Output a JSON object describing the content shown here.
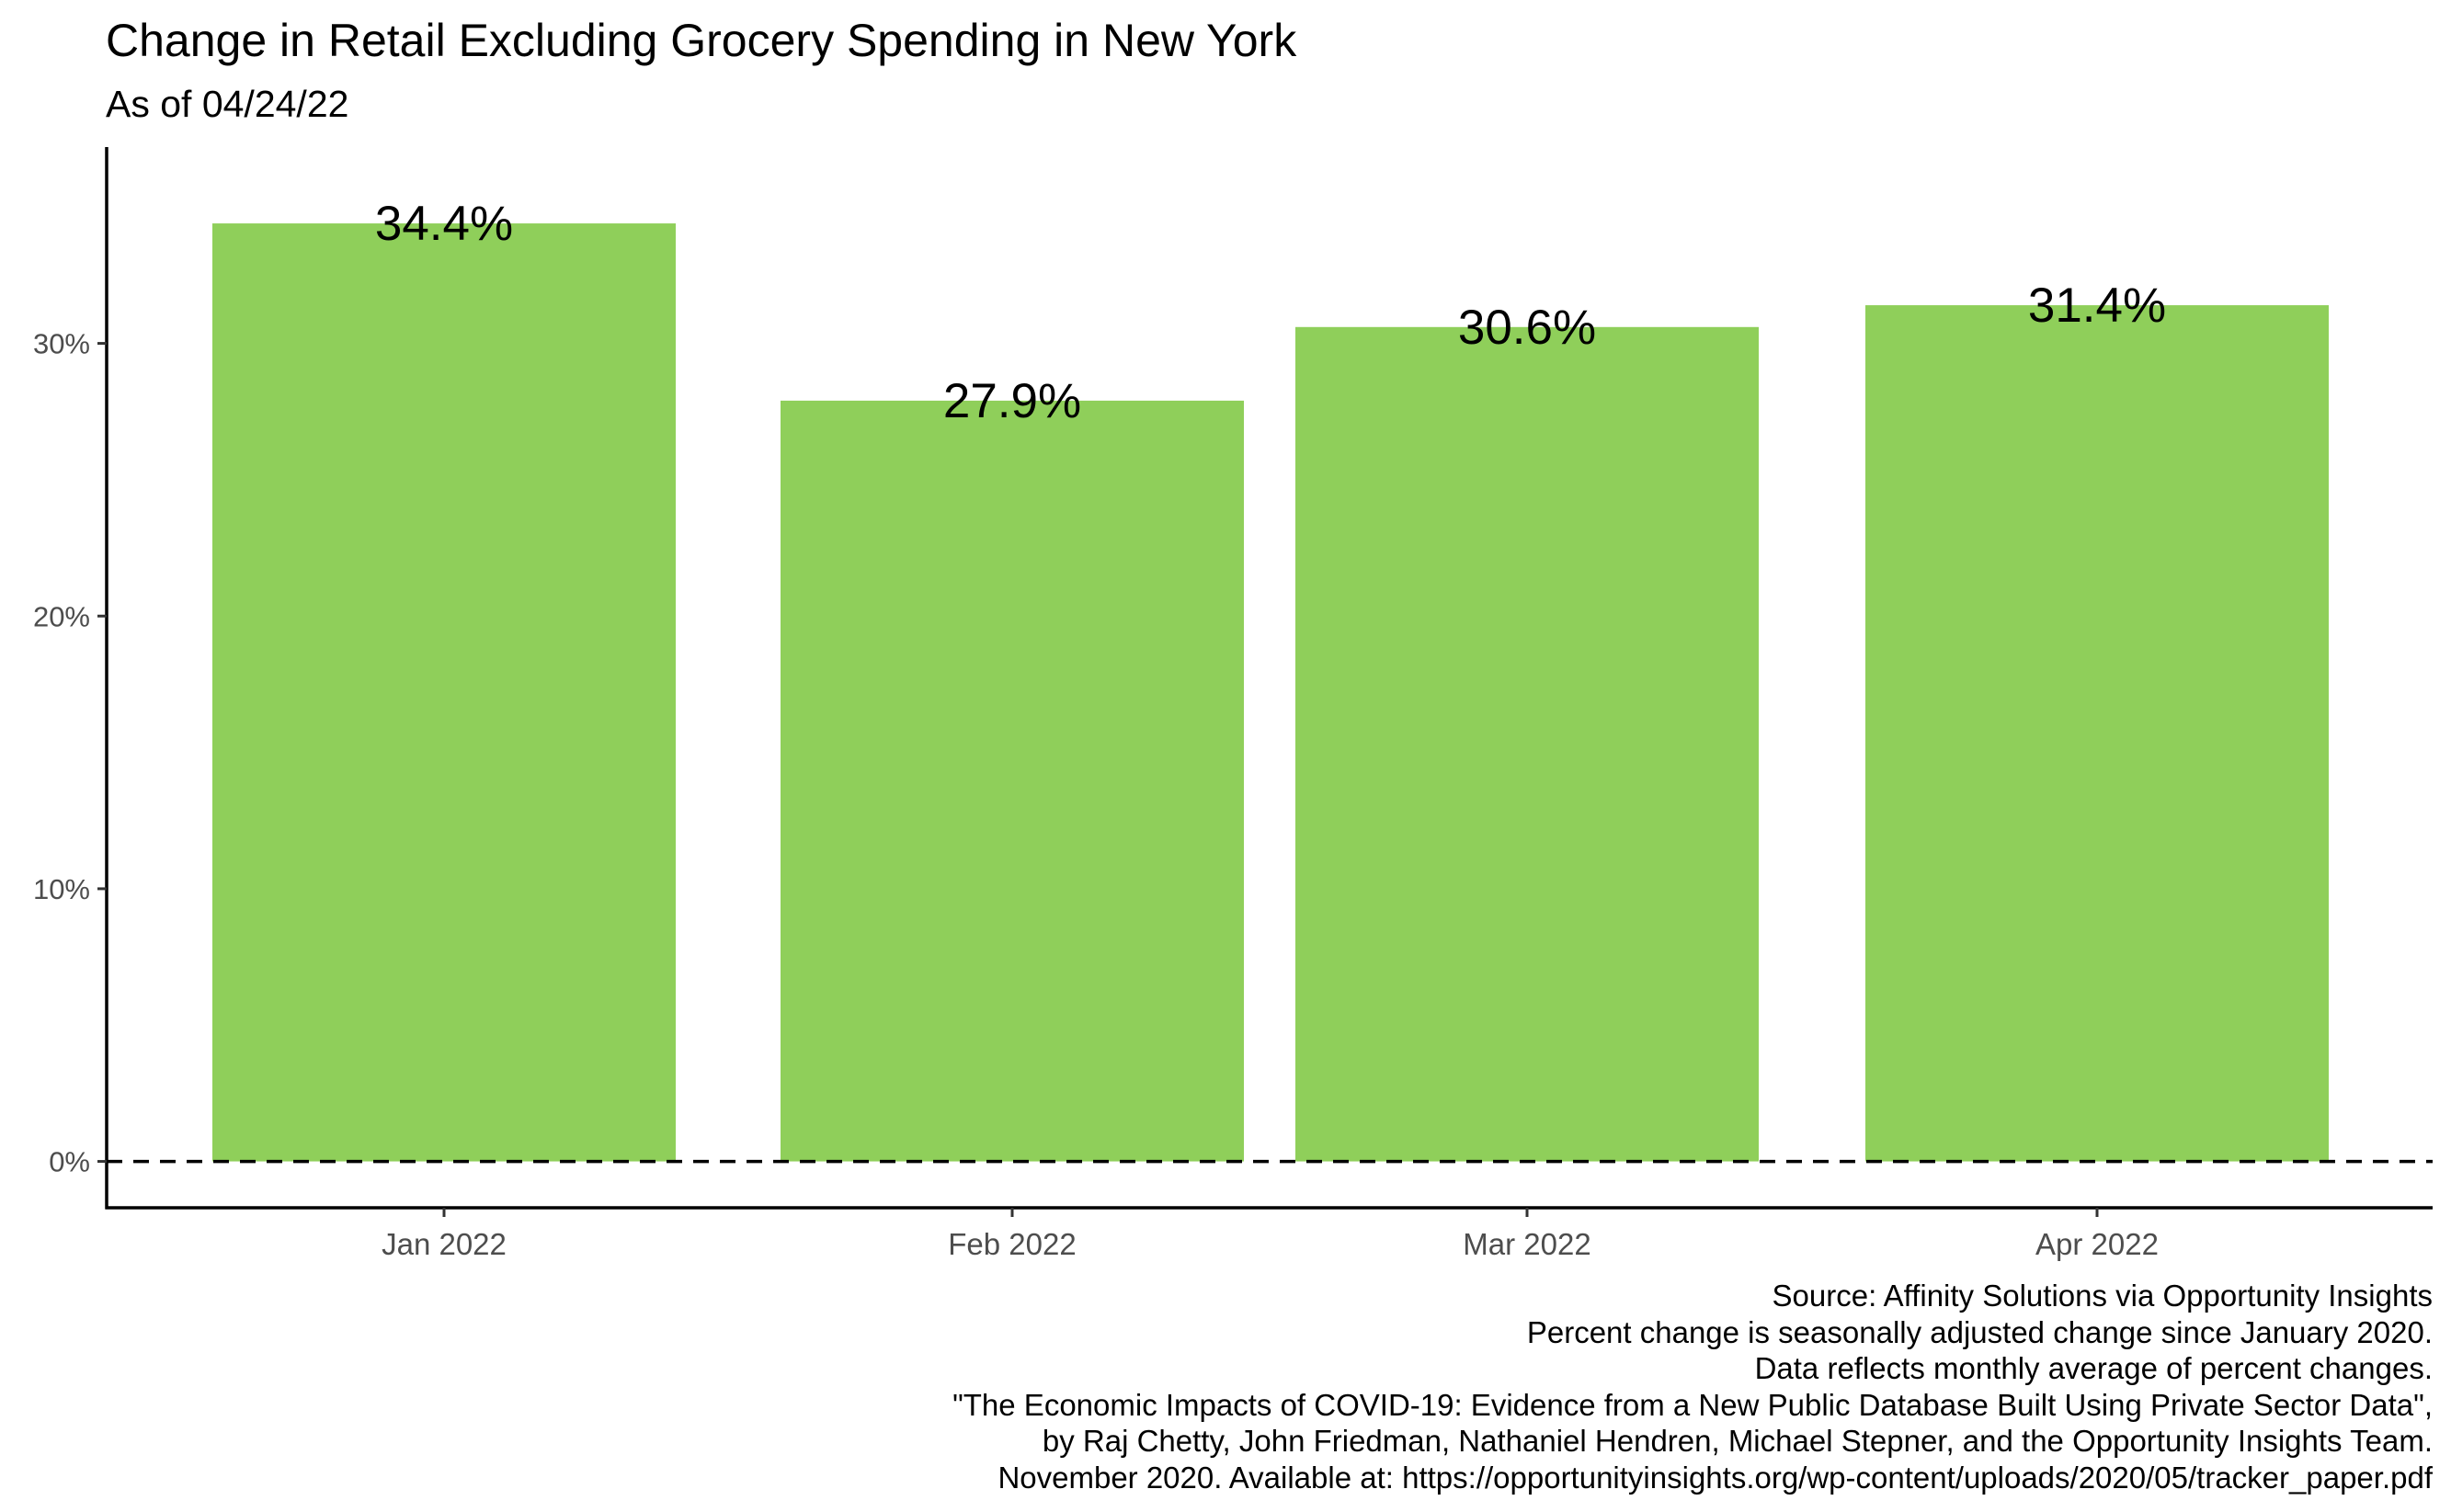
{
  "chart_data": {
    "type": "bar",
    "title": "Change in Retail Excluding Grocery Spending in New York",
    "subtitle": "As of 04/24/22",
    "categories": [
      "Jan 2022",
      "Feb 2022",
      "Mar 2022",
      "Apr 2022"
    ],
    "values": [
      34.4,
      27.9,
      30.6,
      31.4
    ],
    "data_labels": [
      "34.4%",
      "27.9%",
      "30.6%",
      "31.4%"
    ],
    "yticks": [
      0,
      10,
      20,
      30
    ],
    "ytick_labels": [
      "0%",
      "10%",
      "20%",
      "30%"
    ],
    "ylim": [
      -1.7,
      37.2
    ],
    "xlabel": "",
    "ylabel": "",
    "bar_color": "#8FCF5A",
    "reference_line": {
      "value": 0,
      "style": "dashed"
    },
    "grid": false,
    "legend": "none",
    "caption": [
      "Source: Affinity Solutions via Opportunity Insights",
      "Percent change is seasonally adjusted change since January 2020.",
      "Data reflects monthly average of percent changes.",
      "\"The Economic Impacts of COVID-19: Evidence from a New Public Database Built Using Private Sector Data\",",
      "by Raj Chetty, John Friedman, Nathaniel Hendren, Michael Stepner, and the Opportunity Insights Team.",
      "November 2020. Available at: https://opportunityinsights.org/wp-content/uploads/2020/05/tracker_paper.pdf"
    ]
  }
}
